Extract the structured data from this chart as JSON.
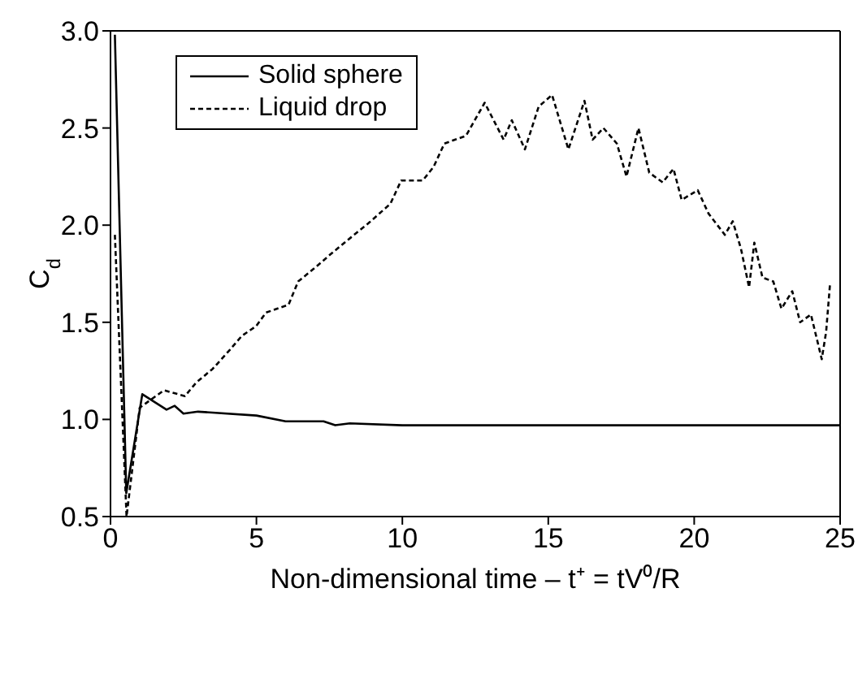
{
  "chart_data": {
    "type": "line",
    "xlabel": "Non-dimensional time – t⁺ = tV⁰/R",
    "ylabel": "C$_{d}$",
    "xlim": [
      0,
      25
    ],
    "ylim": [
      0.5,
      3.0
    ],
    "xticks": [
      0,
      5,
      10,
      15,
      20,
      25
    ],
    "yticks": [
      {
        "value": 0.5,
        "label": "0.5"
      },
      {
        "value": 1.0,
        "label": "1.0"
      },
      {
        "value": 1.5,
        "label": "1.5"
      },
      {
        "value": 2.0,
        "label": "2.0"
      },
      {
        "value": 2.5,
        "label": "2.5"
      },
      {
        "value": 3.0,
        "label": "3.0"
      }
    ],
    "legend": "top left",
    "marker": "none",
    "series": [
      {
        "name": "Solid sphere",
        "color": "#000000",
        "line_style": "solid",
        "x": [
          0.15,
          0.54,
          1.09,
          1.92,
          2.2,
          2.5,
          3,
          5,
          6,
          7.3,
          7.7,
          8.2,
          10,
          25
        ],
        "values": [
          2.98,
          0.62,
          1.13,
          1.05,
          1.07,
          1.03,
          1.04,
          1.02,
          0.99,
          0.99,
          0.97,
          0.98,
          0.97,
          0.97
        ]
      },
      {
        "name": "Liquid drop",
        "color": "#000000",
        "line_style": "dashed",
        "x": [
          0.15,
          0.55,
          1.0,
          1.83,
          2.55,
          2.94,
          3.5,
          4.1,
          4.5,
          4.99,
          5.33,
          6.1,
          6.43,
          7.0,
          7.54,
          8.1,
          8.84,
          9.59,
          9.96,
          10.5,
          10.7,
          11.07,
          11.44,
          12.18,
          12.82,
          13.47,
          13.75,
          14.2,
          14.67,
          15.13,
          15.69,
          16.24,
          16.52,
          16.89,
          17.35,
          17.68,
          18.09,
          18.46,
          18.92,
          19.29,
          19.57,
          20.12,
          20.49,
          21.05,
          21.32,
          21.6,
          21.88,
          22.06,
          22.34,
          22.71,
          22.99,
          23.36,
          23.63,
          24.0,
          24.37,
          24.52,
          24.65
        ],
        "values": [
          1.95,
          0.5,
          1.06,
          1.15,
          1.12,
          1.19,
          1.26,
          1.36,
          1.43,
          1.48,
          1.55,
          1.59,
          1.71,
          1.78,
          1.85,
          1.92,
          2.01,
          2.11,
          2.23,
          2.23,
          2.23,
          2.3,
          2.42,
          2.46,
          2.63,
          2.44,
          2.54,
          2.39,
          2.61,
          2.67,
          2.39,
          2.64,
          2.44,
          2.5,
          2.42,
          2.25,
          2.5,
          2.27,
          2.22,
          2.29,
          2.13,
          2.18,
          2.06,
          1.95,
          2.02,
          1.88,
          1.68,
          1.91,
          1.73,
          1.71,
          1.57,
          1.66,
          1.5,
          1.54,
          1.31,
          1.45,
          1.69
        ]
      }
    ]
  }
}
